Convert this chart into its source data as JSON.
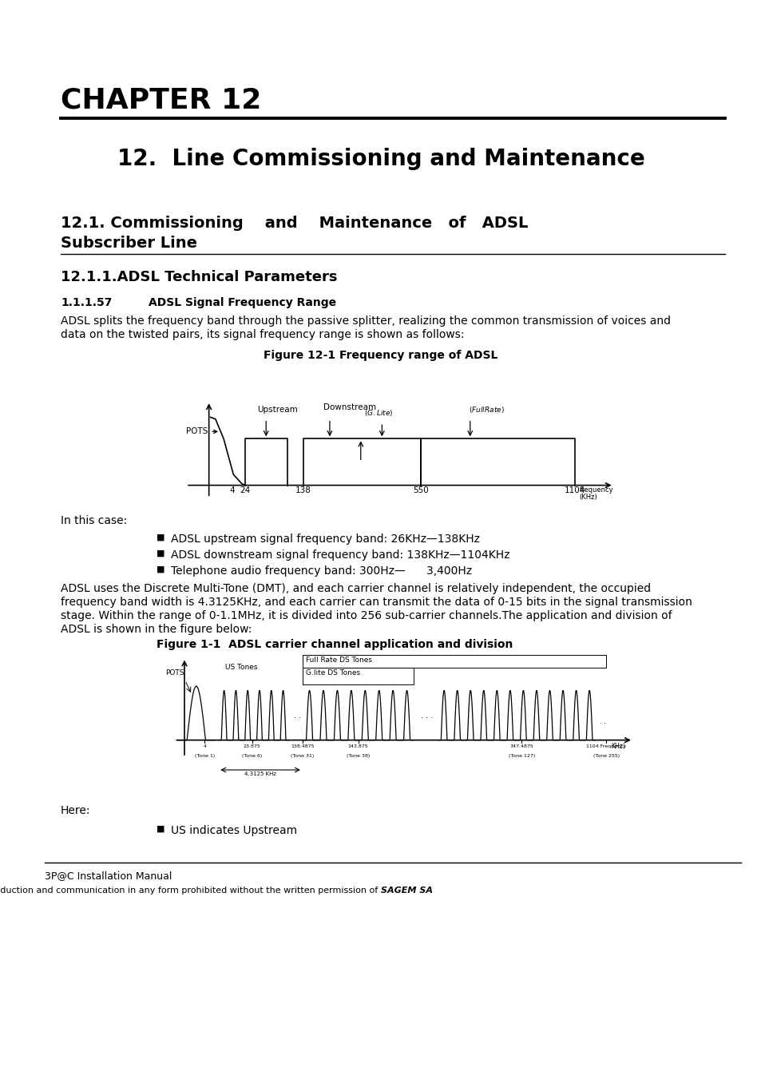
{
  "bg_color": "#ffffff",
  "chapter_title": "CHAPTER 12",
  "section_title": "12.  Line Commissioning and Maintenance",
  "subsubsection_title": "12.1.1.ADSL Technical Parameters",
  "param_num": "1.1.1.57",
  "param_heading": "ADSL Signal Frequency Range",
  "para1_line1": "ADSL splits the frequency band through the passive splitter, realizing the common transmission of voices and",
  "para1_line2": "data on the twisted pairs, its signal frequency range is shown as follows:",
  "fig1_caption": "Figure 12-1 Frequency range of ADSL",
  "in_this_case": "In this case:",
  "bullet1": "ADSL upstream signal frequency band: 26KHz—138KHz",
  "bullet2": "ADSL downstream signal frequency band: 138KHz—1104KHz",
  "bullet3": "Telephone audio frequency band: 300Hz—      3,400Hz",
  "para2_line1": "ADSL uses the Discrete Multi-Tone (DMT), and each carrier channel is relatively independent, the occupied",
  "para2_line2": "frequency band width is 4.3125KHz, and each carrier can transmit the data of 0-15 bits in the signal transmission",
  "para2_line3": "stage. Within the range of 0-1.1MHz, it is divided into 256 sub-carrier channels.The application and division of",
  "para2_line4": "ADSL is shown in the figure below:",
  "fig2_caption": "Figure 1-1  ADSL carrier channel application and division",
  "here_text": "Here:",
  "bullet4": "US indicates Upstream",
  "footer_left": "3P@C Installation Manual",
  "footer_right": "Reproduction and communication in any form prohibited without the written permission of ",
  "footer_bold": "SAGEM SA",
  "subsec_line1": "12.1. Commissioning    and    Maintenance   of   ADSL",
  "subsec_line2": "Subscriber Line"
}
